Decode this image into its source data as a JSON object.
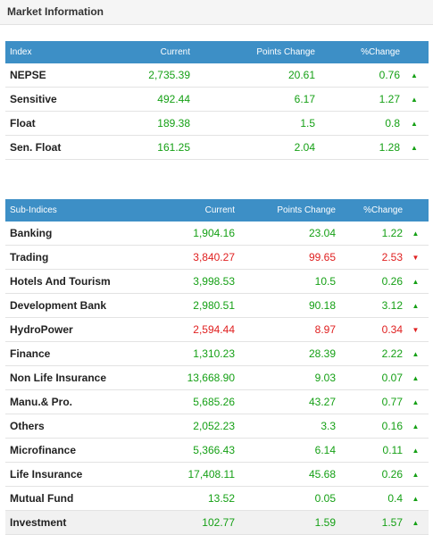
{
  "header": {
    "title": "Market Information"
  },
  "index_table": {
    "columns": [
      "Index",
      "Current",
      "Points Change",
      "%Change"
    ],
    "rows": [
      {
        "name": "NEPSE",
        "current": "2,735.39",
        "points": "20.61",
        "pct": "0.76",
        "dir": "up"
      },
      {
        "name": "Sensitive",
        "current": "492.44",
        "points": "6.17",
        "pct": "1.27",
        "dir": "up"
      },
      {
        "name": "Float",
        "current": "189.38",
        "points": "1.5",
        "pct": "0.8",
        "dir": "up"
      },
      {
        "name": "Sen. Float",
        "current": "161.25",
        "points": "2.04",
        "pct": "1.28",
        "dir": "up"
      }
    ]
  },
  "subindex_table": {
    "columns": [
      "Sub-Indices",
      "Current",
      "Points Change",
      "%Change"
    ],
    "rows": [
      {
        "name": "Banking",
        "current": "1,904.16",
        "points": "23.04",
        "pct": "1.22",
        "dir": "up"
      },
      {
        "name": "Trading",
        "current": "3,840.27",
        "points": "99.65",
        "pct": "2.53",
        "dir": "down"
      },
      {
        "name": "Hotels And Tourism",
        "current": "3,998.53",
        "points": "10.5",
        "pct": "0.26",
        "dir": "up"
      },
      {
        "name": "Development Bank",
        "current": "2,980.51",
        "points": "90.18",
        "pct": "3.12",
        "dir": "up"
      },
      {
        "name": "HydroPower",
        "current": "2,594.44",
        "points": "8.97",
        "pct": "0.34",
        "dir": "down"
      },
      {
        "name": "Finance",
        "current": "1,310.23",
        "points": "28.39",
        "pct": "2.22",
        "dir": "up"
      },
      {
        "name": "Non Life Insurance",
        "current": "13,668.90",
        "points": "9.03",
        "pct": "0.07",
        "dir": "up"
      },
      {
        "name": "Manu.& Pro.",
        "current": "5,685.26",
        "points": "43.27",
        "pct": "0.77",
        "dir": "up"
      },
      {
        "name": "Others",
        "current": "2,052.23",
        "points": "3.3",
        "pct": "0.16",
        "dir": "up"
      },
      {
        "name": "Microfinance",
        "current": "5,366.43",
        "points": "6.14",
        "pct": "0.11",
        "dir": "up"
      },
      {
        "name": "Life Insurance",
        "current": "17,408.11",
        "points": "45.68",
        "pct": "0.26",
        "dir": "up"
      },
      {
        "name": "Mutual Fund",
        "current": "13.52",
        "points": "0.05",
        "pct": "0.4",
        "dir": "up"
      },
      {
        "name": "Investment",
        "current": "102.77",
        "points": "1.59",
        "pct": "1.57",
        "dir": "up",
        "highlight": true
      }
    ]
  },
  "icons": {
    "up": "triangle-up-icon",
    "down": "triangle-down-icon"
  },
  "colors": {
    "header_bg": "#3d8fc6",
    "up": "#15a015",
    "down": "#e02020"
  }
}
